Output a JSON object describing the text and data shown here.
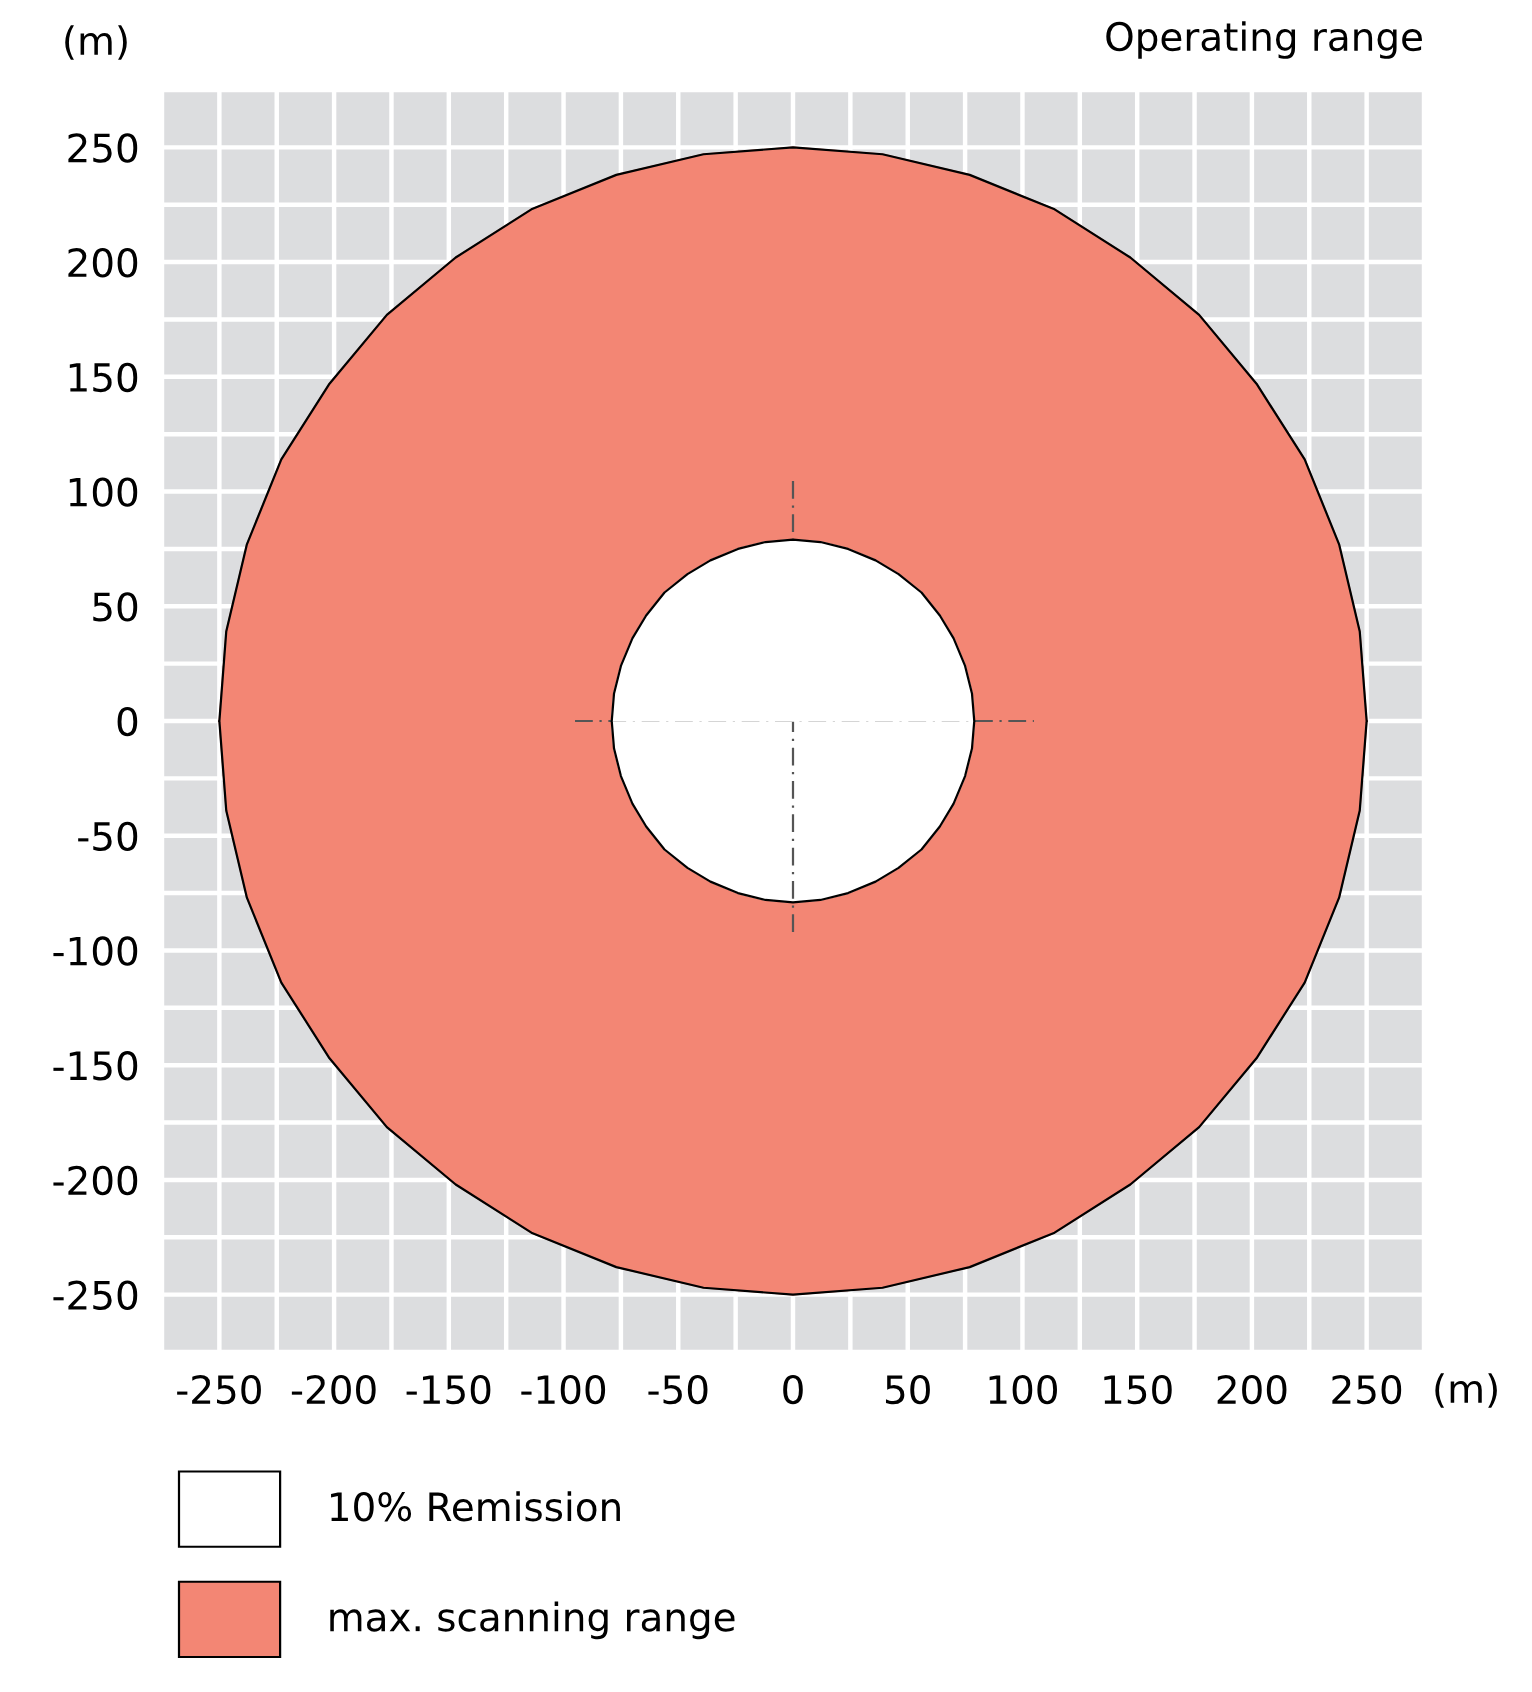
{
  "chart_data": {
    "type": "area",
    "title": "Operating range",
    "xlabel": "(m)",
    "ylabel": "(m)",
    "series": [
      {
        "name": "10% Remission",
        "color": "#ffffff",
        "x": [
          -79,
          -78,
          -75,
          -70,
          -64,
          -56,
          -46,
          -36,
          -24,
          -12,
          0,
          12,
          24,
          36,
          46,
          56,
          64,
          70,
          75,
          78,
          79
        ],
        "values": [
          0,
          12,
          24,
          36,
          46,
          56,
          64,
          70,
          75,
          78,
          79,
          78,
          75,
          70,
          64,
          56,
          46,
          36,
          24,
          12,
          0
        ]
      },
      {
        "color": "#ffffff",
        "x": [
          -79,
          -78,
          -75,
          -70,
          -64,
          -56,
          -46,
          -36,
          -24,
          -12,
          0,
          12,
          24,
          36,
          46,
          56,
          64,
          70,
          75,
          78,
          79
        ],
        "values": [
          0,
          -12,
          -24,
          -36,
          -46,
          -56,
          -64,
          -70,
          -75,
          -78,
          -79,
          -78,
          -75,
          -70,
          -64,
          -56,
          -46,
          -36,
          -24,
          -12,
          0
        ]
      },
      {
        "name": "max. scanning range",
        "color": "#f38674",
        "x": [
          -250,
          -247,
          -238,
          -223,
          -202,
          -177,
          -147,
          -114,
          -77,
          -39,
          0,
          39,
          77,
          114,
          147,
          177,
          202,
          223,
          238,
          247,
          250
        ],
        "values": [
          0,
          39,
          77,
          114,
          147,
          177,
          202,
          223,
          238,
          247,
          250,
          247,
          238,
          223,
          202,
          177,
          147,
          114,
          77,
          39,
          0
        ]
      },
      {
        "color": "#f38674",
        "x": [
          -250,
          -247,
          -238,
          -223,
          -202,
          -177,
          -147,
          -114,
          -77,
          -39,
          0,
          39,
          77,
          114,
          147,
          177,
          202,
          223,
          238,
          247,
          250
        ],
        "values": [
          0,
          -39,
          -77,
          -114,
          -147,
          -177,
          -202,
          -223,
          -238,
          -247,
          -250,
          -247,
          -238,
          -223,
          -202,
          -177,
          -147,
          -114,
          -77,
          -39,
          0
        ]
      }
    ],
    "xlim": [
      -275,
      275
    ],
    "ylim": [
      -275,
      275
    ],
    "xticks": [
      {
        "value": -275,
        "label": null
      },
      -250,
      {
        "value": -225,
        "label": null
      },
      -200,
      {
        "value": -175,
        "label": null
      },
      -150,
      {
        "value": -125,
        "label": null
      },
      -100,
      {
        "value": -75,
        "label": null
      },
      -50,
      {
        "value": -25,
        "label": null
      },
      0,
      {
        "value": 25,
        "label": null
      },
      50,
      {
        "value": 75,
        "label": null
      },
      100,
      {
        "value": 125,
        "label": null
      },
      150,
      {
        "value": 175,
        "label": null
      },
      200,
      {
        "value": 225,
        "label": null
      },
      250,
      {
        "value": 275,
        "label": null
      }
    ],
    "yticks": [
      {
        "value": -275,
        "label": null
      },
      -250,
      {
        "value": -225,
        "label": null
      },
      -200,
      {
        "value": -175,
        "label": null
      },
      -150,
      {
        "value": -125,
        "label": null
      },
      -100,
      {
        "value": -75,
        "label": null
      },
      -50,
      {
        "value": -25,
        "label": null
      },
      0,
      {
        "value": 25,
        "label": null
      },
      50,
      {
        "value": 75,
        "label": null
      },
      100,
      {
        "value": 125,
        "label": null
      },
      150,
      {
        "value": 175,
        "label": null
      },
      200,
      {
        "value": 225,
        "label": null
      },
      250,
      {
        "value": 275,
        "label": null
      }
    ],
    "grid": true,
    "legend": "bottom left"
  }
}
